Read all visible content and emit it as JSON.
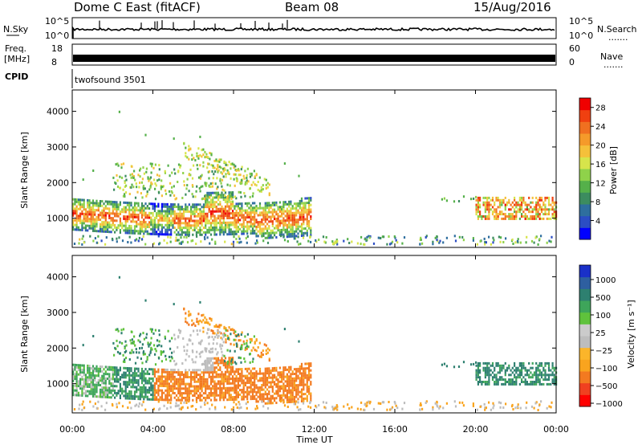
{
  "header": {
    "radar": "Dome C East (fitACF)",
    "beam": "Beam 08",
    "date": "15/Aug/2016"
  },
  "strips": {
    "nsky_label": "N.Sky",
    "nsky_ticks": [
      "10^5",
      "10^0"
    ],
    "nsearch_label": "N.Search",
    "nsearch_ticks": [
      "10^5",
      "10^0"
    ],
    "freq_label_1": "Freq.",
    "freq_label_2": "[MHz]",
    "freq_ticks": [
      "18",
      "8"
    ],
    "nave_label": "Nave",
    "nave_ticks": [
      "60",
      "0"
    ],
    "cpid_label": "CPID",
    "cpid_value": "twofsound 3501",
    "dots": "......."
  },
  "colors": {
    "power_scale": [
      "#0000ff",
      "#2b4dc4",
      "#2e6e9e",
      "#3c8c5f",
      "#55b04a",
      "#8fd24a",
      "#d7e44b",
      "#f5c03a",
      "#f59a2a",
      "#f07020",
      "#f04010",
      "#f00000"
    ],
    "velocity_scale": [
      "#ff0000",
      "#f04020",
      "#f37a20",
      "#f9a41e",
      "#fbb52a",
      "#bdbdbd",
      "#cbcbcb",
      "#5fc23c",
      "#3ea55a",
      "#2e8070",
      "#2e5fa0",
      "#1a30c8"
    ]
  },
  "chart_data": [
    {
      "type": "heatmap",
      "name": "power",
      "xlabel": "",
      "ylabel": "Slant Range [km]",
      "ylim": [
        180,
        4600
      ],
      "xlim": [
        0,
        24
      ],
      "yticks": [
        "1000",
        "2000",
        "3000",
        "4000"
      ],
      "colorbar_label": "Power [dB]",
      "colorbar_ticks": [
        "4",
        "8",
        "12",
        "16",
        "20",
        "24",
        "28"
      ],
      "colorbar_range": [
        0,
        30
      ]
    },
    {
      "type": "heatmap",
      "name": "velocity",
      "xlabel": "Time UT",
      "ylabel": "Slant Range [km]",
      "ylim": [
        180,
        4600
      ],
      "xlim": [
        0,
        24
      ],
      "yticks": [
        "1000",
        "2000",
        "3000",
        "4000"
      ],
      "xticks": [
        "00:00",
        "04:00",
        "08:00",
        "12:00",
        "16:00",
        "20:00",
        "00:00"
      ],
      "colorbar_label": "Velocity [m s⁻¹]",
      "colorbar_ticks": [
        "1000",
        "500",
        "100",
        "25",
        "−25",
        "−100",
        "−500",
        "−1000"
      ]
    }
  ]
}
